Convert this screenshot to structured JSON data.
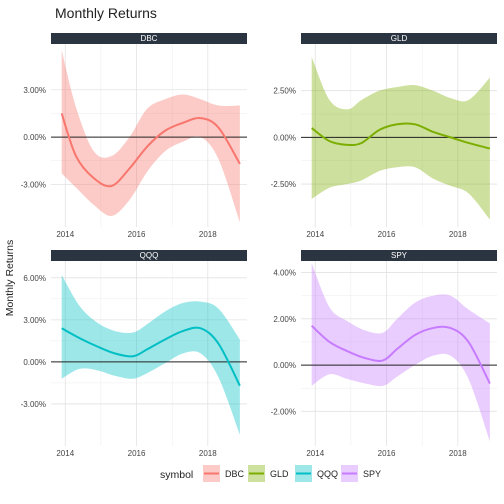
{
  "title": "Monthly Returns",
  "ylabel": "Monthly Returns",
  "legend": {
    "title": "symbol",
    "position": "bottom"
  },
  "chart_data": [
    {
      "type": "area",
      "panel": "DBC",
      "color": "#F8766D",
      "x": [
        2013.9,
        2014.3,
        2014.8,
        2015.3,
        2015.8,
        2016.3,
        2016.8,
        2017.3,
        2017.8,
        2018.3,
        2018.9
      ],
      "y": [
        1.5,
        -1.2,
        -2.6,
        -3.1,
        -2.0,
        -0.6,
        0.4,
        0.9,
        1.2,
        0.6,
        -1.7
      ],
      "lower": [
        -2.3,
        -3.2,
        -4.3,
        -5.0,
        -4.0,
        -2.2,
        -0.9,
        -0.3,
        0.0,
        -1.4,
        -5.4
      ],
      "upper": [
        5.5,
        1.9,
        -0.9,
        -1.2,
        0.0,
        1.8,
        2.4,
        2.7,
        2.4,
        2.0,
        2.0
      ],
      "xlim": [
        2013.6,
        2019.1
      ],
      "ylim": [
        -5.7,
        5.9
      ],
      "yticks": [
        -3,
        0,
        3
      ],
      "yticklabels": [
        "-3.00%",
        "0.00%",
        "3.00%"
      ],
      "xticks": [
        2014,
        2016,
        2018
      ],
      "xticklabels": [
        "2014",
        "2016",
        "2018"
      ]
    },
    {
      "type": "area",
      "panel": "GLD",
      "color": "#7CAE00",
      "x": [
        2013.9,
        2014.4,
        2014.9,
        2015.3,
        2015.8,
        2016.3,
        2016.8,
        2017.3,
        2017.8,
        2018.3,
        2018.9
      ],
      "y": [
        0.5,
        -0.2,
        -0.4,
        -0.3,
        0.4,
        0.7,
        0.7,
        0.3,
        0.0,
        -0.3,
        -0.6
      ],
      "lower": [
        -3.3,
        -2.7,
        -2.5,
        -2.3,
        -1.8,
        -1.6,
        -1.6,
        -2.2,
        -2.6,
        -3.0,
        -4.4
      ],
      "upper": [
        4.3,
        2.0,
        1.5,
        2.0,
        2.5,
        2.7,
        2.8,
        2.5,
        2.1,
        2.0,
        3.2
      ],
      "xlim": [
        2013.6,
        2019.1
      ],
      "ylim": [
        -4.8,
        5.0
      ],
      "yticks": [
        -2.5,
        0,
        2.5
      ],
      "yticklabels": [
        "-2.50%",
        "0.00%",
        "2.50%"
      ],
      "xticks": [
        2014,
        2016,
        2018
      ],
      "xticklabels": [
        "2014",
        "2016",
        "2018"
      ]
    },
    {
      "type": "area",
      "panel": "QQQ",
      "color": "#00BFC4",
      "x": [
        2013.9,
        2014.4,
        2014.9,
        2015.4,
        2015.9,
        2016.3,
        2016.8,
        2017.3,
        2017.8,
        2018.3,
        2018.9
      ],
      "y": [
        2.4,
        1.7,
        1.1,
        0.6,
        0.4,
        0.9,
        1.6,
        2.2,
        2.4,
        1.3,
        -1.7
      ],
      "lower": [
        -1.2,
        -0.5,
        -0.6,
        -1.0,
        -1.2,
        -0.8,
        -0.1,
        0.6,
        0.6,
        -1.1,
        -5.2
      ],
      "upper": [
        6.2,
        4.0,
        2.8,
        2.2,
        2.1,
        2.7,
        3.6,
        4.2,
        4.3,
        3.8,
        1.6
      ],
      "xlim": [
        2013.6,
        2019.1
      ],
      "ylim": [
        -6.0,
        7.2
      ],
      "yticks": [
        -3,
        0,
        3,
        6
      ],
      "yticklabels": [
        "-3.00%",
        "0.00%",
        "3.00%",
        "6.00%"
      ],
      "xticks": [
        2014,
        2016,
        2018
      ],
      "xticklabels": [
        "2014",
        "2016",
        "2018"
      ]
    },
    {
      "type": "area",
      "panel": "SPY",
      "color": "#C77CFF",
      "x": [
        2013.9,
        2014.4,
        2014.9,
        2015.4,
        2015.9,
        2016.3,
        2016.8,
        2017.3,
        2017.8,
        2018.3,
        2018.9
      ],
      "y": [
        1.7,
        1.0,
        0.6,
        0.3,
        0.2,
        0.7,
        1.3,
        1.6,
        1.6,
        1.0,
        -0.8
      ],
      "lower": [
        -0.9,
        -0.4,
        -0.6,
        -0.8,
        -0.9,
        -0.5,
        0.0,
        0.4,
        0.4,
        -0.6,
        -3.3
      ],
      "upper": [
        4.4,
        2.5,
        1.9,
        1.5,
        1.4,
        2.0,
        2.7,
        3.0,
        3.0,
        2.4,
        1.8
      ],
      "xlim": [
        2013.6,
        2019.1
      ],
      "ylim": [
        -3.5,
        4.5
      ],
      "yticks": [
        -2,
        0,
        2,
        4
      ],
      "yticklabels": [
        "-2.00%",
        "0.00%",
        "2.00%",
        "4.00%"
      ],
      "xticks": [
        2014,
        2016,
        2018
      ],
      "xticklabels": [
        "2014",
        "2016",
        "2018"
      ]
    }
  ]
}
